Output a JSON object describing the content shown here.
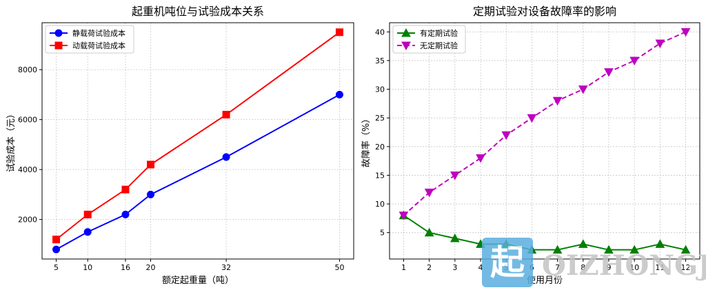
{
  "chart_data": [
    {
      "type": "line",
      "title": "起重机吨位与试验成本关系",
      "xlabel": "额定起重量（吨）",
      "ylabel": "试验成本（元）",
      "x": [
        5,
        10,
        16,
        20,
        32,
        50
      ],
      "x_ticks": [
        "5",
        "10",
        "16",
        "20",
        "32",
        "50"
      ],
      "xlim": [
        2.75,
        52.25
      ],
      "ylim": [
        418,
        9880
      ],
      "y_ticks": [
        2000,
        4000,
        6000,
        8000
      ],
      "y_tick_labels": [
        "2000",
        "4000",
        "6000",
        "8000"
      ],
      "grid": true,
      "legend_position": "upper left",
      "series": [
        {
          "name": "静载荷试验成本",
          "values": [
            800,
            1500,
            2200,
            3000,
            4500,
            7000
          ],
          "color": "#0000ff",
          "marker": "circle",
          "linestyle": "solid"
        },
        {
          "name": "动载荷试验成本",
          "values": [
            1200,
            2200,
            3200,
            4200,
            6200,
            9500
          ],
          "color": "#ff0000",
          "marker": "square",
          "linestyle": "solid"
        }
      ]
    },
    {
      "type": "line",
      "title": "定期试验对设备故障率的影响",
      "xlabel": "使用月份",
      "ylabel": "故障率（%）",
      "x": [
        1,
        2,
        3,
        4,
        5,
        6,
        7,
        8,
        9,
        10,
        11,
        12
      ],
      "x_ticks": [
        "1",
        "2",
        "3",
        "4",
        "5",
        "6",
        "7",
        "8",
        "9",
        "10",
        "11",
        "12"
      ],
      "xlim": [
        0.45,
        12.55
      ],
      "ylim": [
        0.4,
        41.6
      ],
      "y_ticks": [
        5,
        10,
        15,
        20,
        25,
        30,
        35,
        40
      ],
      "y_tick_labels": [
        "5",
        "10",
        "15",
        "20",
        "25",
        "30",
        "35",
        "40"
      ],
      "grid": true,
      "legend_position": "upper left",
      "series": [
        {
          "name": "有定期试验",
          "values": [
            8,
            5,
            4,
            3,
            3,
            2,
            2,
            3,
            2,
            2,
            3,
            2
          ],
          "color": "#008000",
          "marker": "triangle-up",
          "linestyle": "solid"
        },
        {
          "name": "无定期试验",
          "values": [
            8,
            12,
            15,
            18,
            22,
            25,
            28,
            30,
            33,
            35,
            38,
            40
          ],
          "color": "#bf00bf",
          "marker": "triangle-down",
          "linestyle": "dashed"
        }
      ]
    }
  ],
  "watermark": {
    "logo_char": "起",
    "text": "QIZHONGJI",
    "logo_color": "#5aaee0",
    "text_color": "#bdbdbd"
  }
}
